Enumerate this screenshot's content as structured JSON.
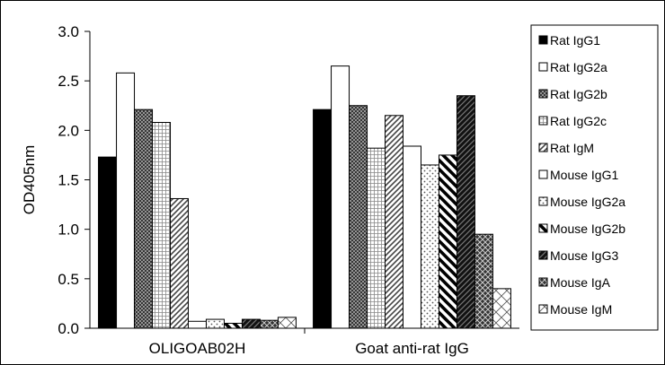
{
  "chart_data": {
    "type": "bar",
    "ylabel": "OD405nm",
    "ylim": [
      0,
      3.0
    ],
    "yticks": [
      "0.0",
      "0.5",
      "1.0",
      "1.5",
      "2.0",
      "2.5",
      "3.0"
    ],
    "categories": [
      "OLIGOAB02H",
      "Goat anti-rat IgG"
    ],
    "legend_position": "right",
    "grid": false,
    "series": [
      {
        "name": "Rat IgG1",
        "pattern": "solid-black",
        "values": [
          1.73,
          2.21
        ]
      },
      {
        "name": "Rat IgG2a",
        "pattern": "white",
        "values": [
          2.58,
          2.65
        ]
      },
      {
        "name": "Rat IgG2b",
        "pattern": "crosshatch-gray",
        "values": [
          2.21,
          2.25
        ]
      },
      {
        "name": "Rat IgG2c",
        "pattern": "grid-light",
        "values": [
          2.08,
          1.82
        ]
      },
      {
        "name": "Rat IgM",
        "pattern": "diagonal-light",
        "values": [
          1.31,
          2.15
        ]
      },
      {
        "name": "Mouse IgG1",
        "pattern": "white",
        "values": [
          0.07,
          1.84
        ]
      },
      {
        "name": "Mouse IgG2a",
        "pattern": "dots",
        "values": [
          0.09,
          1.65
        ]
      },
      {
        "name": "Mouse IgG2b",
        "pattern": "diagonal-heavy",
        "values": [
          0.05,
          1.75
        ]
      },
      {
        "name": "Mouse IgG3",
        "pattern": "diagonal-dark",
        "values": [
          0.09,
          2.35
        ]
      },
      {
        "name": "Mouse IgA",
        "pattern": "checker-dark",
        "values": [
          0.08,
          0.95
        ]
      },
      {
        "name": "Mouse IgM",
        "pattern": "diamond-light",
        "values": [
          0.11,
          0.4
        ]
      }
    ]
  }
}
